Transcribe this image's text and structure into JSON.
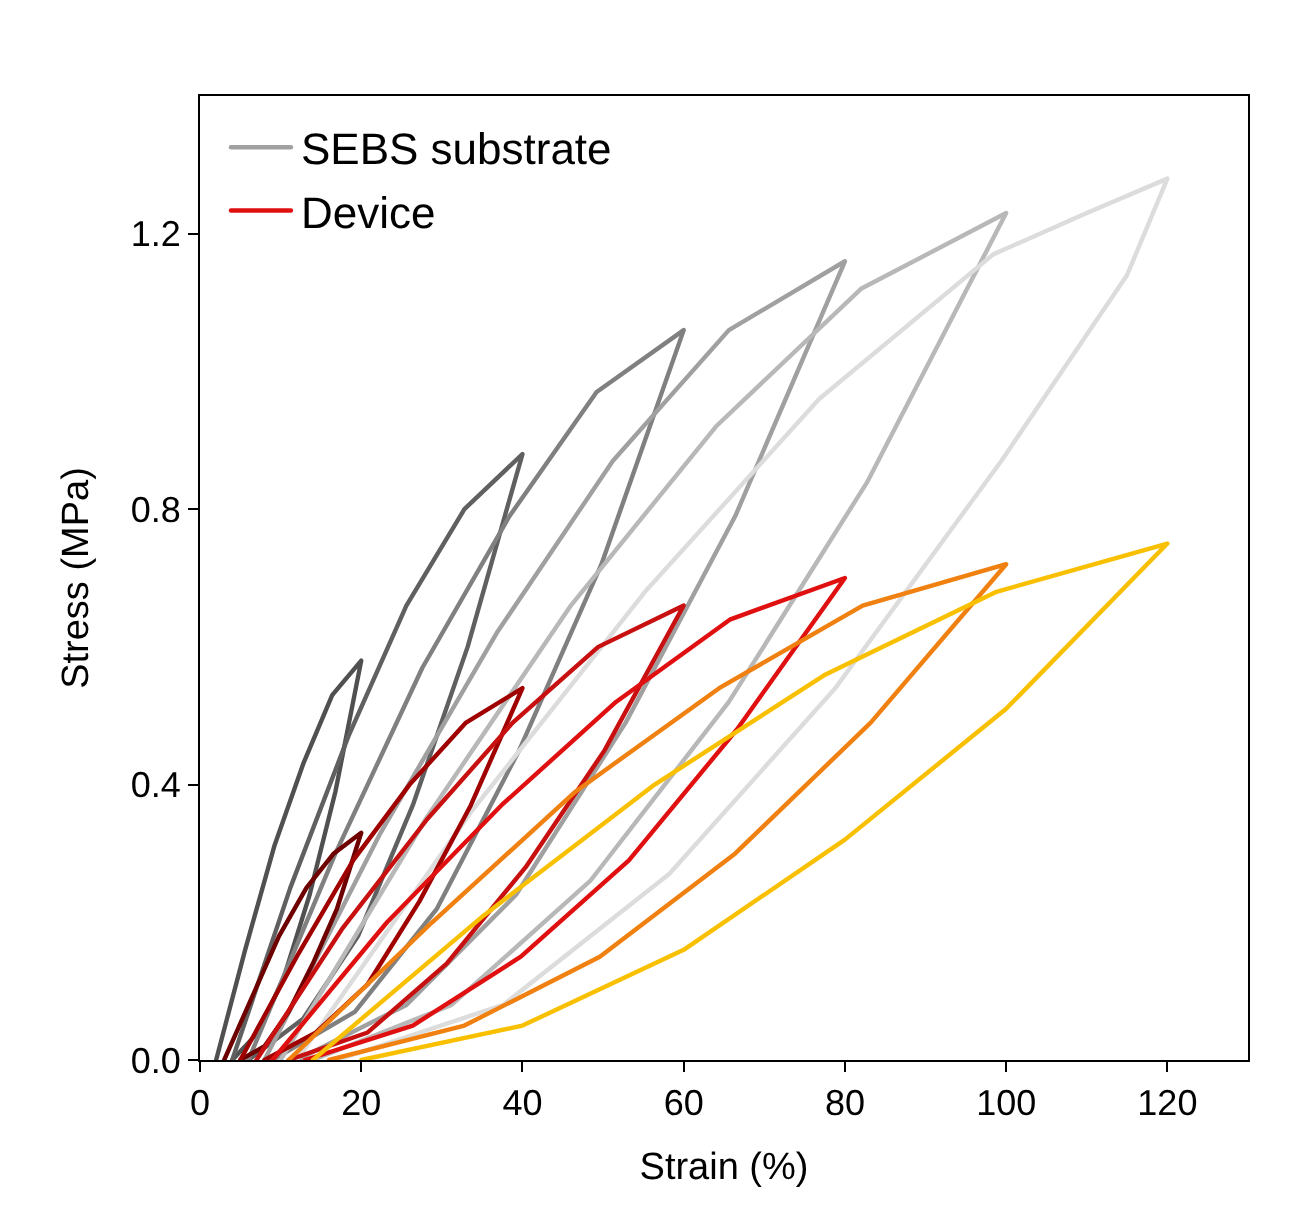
{
  "chart_data": {
    "type": "line",
    "xlabel": "Strain (%)",
    "ylabel": "Stress (MPa)",
    "xlim": [
      0,
      130
    ],
    "xticks": [
      0,
      20,
      40,
      60,
      80,
      100,
      120
    ],
    "ylim": [
      0,
      1.4
    ],
    "yticks": [
      {
        "value": 0,
        "label": "0.0"
      },
      {
        "value": 0.4,
        "label": "0.4"
      },
      {
        "value": 0.8,
        "label": "0.8"
      },
      {
        "value": 1.2,
        "label": "1.2"
      }
    ],
    "legend": "top left",
    "marker": "none",
    "line_style": "solid",
    "series": [
      {
        "color": "#505050",
        "x": [
          2,
          5.6,
          9.2,
          12.8,
          16.4,
          20,
          16.8,
          13.6,
          10.4,
          7.2,
          4
        ],
        "values": [
          0,
          0.16,
          0.31,
          0.43,
          0.53,
          0.58,
          0.39,
          0.24,
          0.12,
          0.04,
          0
        ]
      },
      {
        "color": "#606060",
        "x": [
          4,
          11.2,
          18.4,
          25.6,
          32.8,
          40,
          33.2,
          26.4,
          19.6,
          12.8,
          6
        ],
        "values": [
          0,
          0.25,
          0.47,
          0.66,
          0.8,
          0.88,
          0.6,
          0.37,
          0.18,
          0.06,
          0
        ]
      },
      {
        "color": "#808080",
        "x": [
          6,
          16.8,
          27.6,
          38.4,
          49.2,
          60,
          49.8,
          39.6,
          29.4,
          19.2,
          9
        ],
        "values": [
          0,
          0.3,
          0.57,
          0.79,
          0.97,
          1.06,
          0.72,
          0.45,
          0.22,
          0.07,
          0
        ]
      },
      {
        "name": "SEBS substrate",
        "color": "#a0a0a0",
        "x": [
          8,
          22.4,
          36.8,
          51.2,
          65.6,
          80,
          66.4,
          52.8,
          39.2,
          25.6,
          12
        ],
        "values": [
          0,
          0.33,
          0.62,
          0.87,
          1.06,
          1.16,
          0.79,
          0.49,
          0.24,
          0.08,
          0
        ]
      },
      {
        "color": "#b8b8b8",
        "x": [
          10,
          28,
          46,
          64,
          82,
          100,
          82.8,
          65.6,
          48.4,
          31.2,
          14
        ],
        "values": [
          0,
          0.35,
          0.66,
          0.92,
          1.12,
          1.23,
          0.84,
          0.52,
          0.26,
          0.08,
          0
        ]
      },
      {
        "color": "#dcdcdc",
        "x": [
          12,
          33.6,
          55.2,
          76.8,
          98.4,
          110,
          120,
          115,
          99.4,
          78.8,
          58.2,
          37.6,
          17
        ],
        "values": [
          0,
          0.36,
          0.68,
          0.96,
          1.17,
          1.23,
          1.28,
          1.14,
          0.87,
          0.54,
          0.27,
          0.08,
          0
        ]
      },
      {
        "color": "#6e0000",
        "x": [
          3,
          6.4,
          9.8,
          13.2,
          16.6,
          20,
          17,
          14,
          11,
          8,
          5
        ],
        "values": [
          0,
          0.09,
          0.18,
          0.25,
          0.3,
          0.33,
          0.22,
          0.14,
          0.07,
          0.02,
          0
        ]
      },
      {
        "color": "#a00000",
        "x": [
          5,
          12,
          19,
          26,
          33,
          40,
          33.6,
          27.2,
          20.8,
          14.4,
          8
        ],
        "values": [
          0,
          0.15,
          0.29,
          0.4,
          0.49,
          0.54,
          0.37,
          0.23,
          0.11,
          0.04,
          0
        ]
      },
      {
        "color": "#c81010",
        "x": [
          7,
          17.6,
          28.2,
          38.8,
          49.4,
          60,
          50.2,
          40.4,
          30.6,
          20.8,
          11
        ],
        "values": [
          0,
          0.19,
          0.35,
          0.49,
          0.6,
          0.66,
          0.45,
          0.28,
          0.14,
          0.04,
          0
        ]
      },
      {
        "name": "Device",
        "color": "#e01010",
        "x": [
          9,
          23.2,
          37.4,
          51.6,
          65.8,
          80,
          66.6,
          53.2,
          39.8,
          26.4,
          13
        ],
        "values": [
          0,
          0.2,
          0.37,
          0.52,
          0.64,
          0.7,
          0.48,
          0.29,
          0.15,
          0.05,
          0
        ]
      },
      {
        "color": "#f08010",
        "x": [
          11,
          28.8,
          46.6,
          64.4,
          82.2,
          100,
          83.2,
          66.4,
          49.6,
          32.8,
          16
        ],
        "values": [
          0,
          0.2,
          0.39,
          0.54,
          0.66,
          0.72,
          0.49,
          0.3,
          0.15,
          0.05,
          0
        ]
      },
      {
        "color": "#f8c000",
        "x": [
          14,
          35.2,
          56.4,
          77.6,
          98.8,
          120,
          100,
          80,
          60,
          40,
          20
        ],
        "values": [
          0,
          0.21,
          0.4,
          0.56,
          0.68,
          0.75,
          0.51,
          0.32,
          0.16,
          0.05,
          0
        ]
      }
    ]
  }
}
